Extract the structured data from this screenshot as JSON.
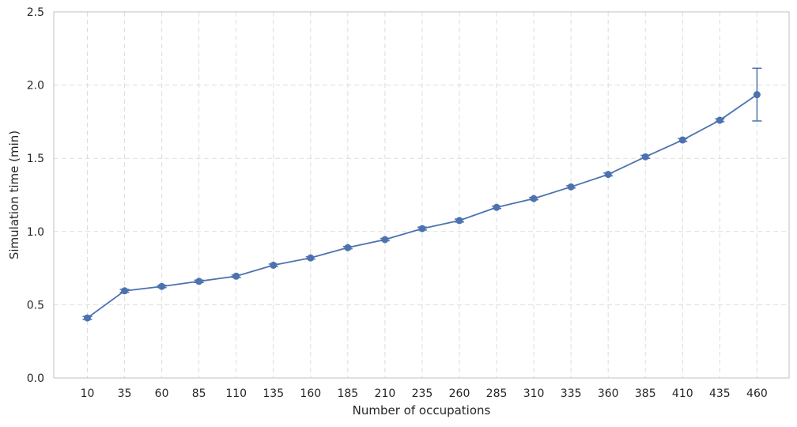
{
  "chart_data": {
    "type": "line",
    "xlabel": "Number of occupations",
    "ylabel": "Simulation time (min)",
    "categories": [
      "10",
      "35",
      "60",
      "85",
      "110",
      "135",
      "160",
      "185",
      "210",
      "235",
      "260",
      "285",
      "310",
      "335",
      "360",
      "385",
      "410",
      "435",
      "460"
    ],
    "series": [
      {
        "values": [
          0.41,
          0.595,
          0.625,
          0.66,
          0.695,
          0.77,
          0.82,
          0.89,
          0.945,
          1.02,
          1.075,
          1.165,
          1.225,
          1.305,
          1.39,
          1.51,
          1.625,
          1.76,
          1.935
        ],
        "errors": [
          0.01,
          0.01,
          0.008,
          0.008,
          0.008,
          0.008,
          0.008,
          0.008,
          0.008,
          0.01,
          0.01,
          0.008,
          0.008,
          0.008,
          0.01,
          0.01,
          0.01,
          0.01,
          0.18
        ],
        "color": "#4c72b0"
      }
    ],
    "yticks": [
      "0.0",
      "0.5",
      "1.0",
      "1.5",
      "2.0",
      "2.5"
    ],
    "ylim": [
      0,
      2.5
    ],
    "grid": true,
    "legend": "none"
  }
}
